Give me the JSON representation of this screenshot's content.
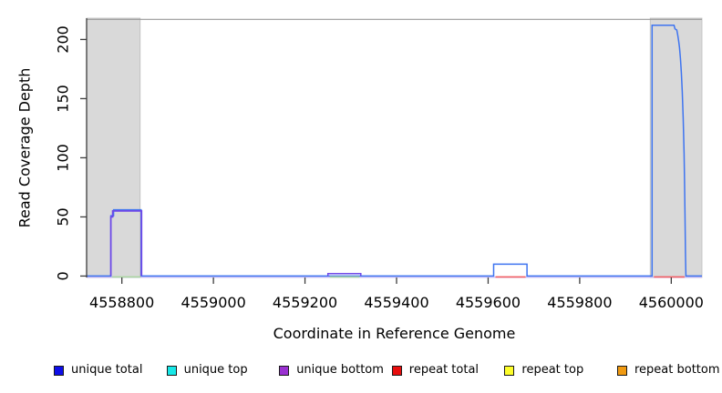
{
  "chart_data": {
    "type": "line",
    "title": "",
    "xlabel": "Coordinate in Reference Genome",
    "ylabel": "Read Coverage Depth",
    "xlim": [
      4558723,
      4560067
    ],
    "ylim": [
      -1.2,
      218
    ],
    "x_ticks": [
      4558800,
      4559000,
      4559200,
      4559400,
      4559600,
      4559800,
      4560000
    ],
    "y_ticks": [
      0,
      50,
      100,
      150,
      200
    ],
    "grid": false,
    "top_rule_y": 217,
    "top_rule_color": "#9a9a9a",
    "axis_color": "#3c3c3c",
    "shaded_regions": [
      {
        "name": "masked-region-left",
        "x0": 4558723,
        "x1": 4558840,
        "fill": "#d9d9d9",
        "border": "#bcbcbc"
      },
      {
        "name": "masked-region-right",
        "x0": 4559954,
        "x1": 4560067,
        "fill": "#d9d9d9",
        "border": "#bcbcbc"
      }
    ],
    "series": [
      {
        "name": "zero-line-unique-lavender",
        "color": "#c2b1f4",
        "points": [
          [
            4558723,
            0
          ],
          [
            4560067,
            0
          ]
        ]
      },
      {
        "name": "unique-total",
        "color": "#3e74f0",
        "points": [
          [
            4558723,
            0
          ],
          [
            4558776,
            0
          ],
          [
            4558776,
            51
          ],
          [
            4558782,
            51
          ],
          [
            4558782,
            56
          ],
          [
            4558842,
            56
          ],
          [
            4558842,
            0
          ],
          [
            4559612,
            0
          ],
          [
            4559612,
            10
          ],
          [
            4559685,
            10
          ],
          [
            4559685,
            0
          ],
          [
            4559958,
            0
          ],
          [
            4559958,
            212
          ],
          [
            4560006,
            212
          ],
          [
            4560008,
            209
          ],
          [
            4560012,
            208
          ],
          [
            4560014,
            204
          ],
          [
            4560016,
            199
          ],
          [
            4560018,
            193
          ],
          [
            4560020,
            184
          ],
          [
            4560022,
            172
          ],
          [
            4560024,
            156
          ],
          [
            4560026,
            134
          ],
          [
            4560028,
            104
          ],
          [
            4560029,
            80
          ],
          [
            4560030,
            52
          ],
          [
            4560031,
            20
          ],
          [
            4560032,
            0
          ],
          [
            4560067,
            0
          ]
        ]
      },
      {
        "name": "zero-overlap-green-left",
        "color": "#a9d5a0",
        "points": [
          [
            4558779,
            0
          ],
          [
            4558841,
            0
          ]
        ]
      },
      {
        "name": "zero-overlap-green-mid",
        "color": "#a9d5a0",
        "points": [
          [
            4559254,
            0
          ],
          [
            4559319,
            0
          ]
        ]
      },
      {
        "name": "repeat-total-zero-mid",
        "color": "#f15e63",
        "points": [
          [
            4559616,
            0
          ],
          [
            4559682,
            0
          ]
        ]
      },
      {
        "name": "repeat-total-zero-right",
        "color": "#f15e63",
        "points": [
          [
            4559962,
            0
          ],
          [
            4560029,
            0
          ]
        ]
      },
      {
        "name": "unique-bottom-peak",
        "color": "#6f48e8",
        "points": [
          [
            4558776,
            0
          ],
          [
            4558776,
            50
          ],
          [
            4558780,
            50
          ],
          [
            4558780,
            55
          ],
          [
            4558843,
            55
          ],
          [
            4558843,
            0
          ]
        ]
      },
      {
        "name": "unique-bottom-bump",
        "color": "#6f48e8",
        "points": [
          [
            4559250,
            0
          ],
          [
            4559250,
            2
          ],
          [
            4559322,
            2
          ],
          [
            4559322,
            0
          ]
        ]
      }
    ],
    "legend": [
      {
        "label": "unique total",
        "color": "#0e0ee8"
      },
      {
        "label": "unique top",
        "color": "#17e7e7"
      },
      {
        "label": "unique bottom",
        "color": "#9a31d1"
      },
      {
        "label": "repeat total",
        "color": "#e80e0e"
      },
      {
        "label": "repeat top",
        "color": "#fdfd2a"
      },
      {
        "label": "repeat bottom",
        "color": "#f09a12"
      }
    ]
  }
}
